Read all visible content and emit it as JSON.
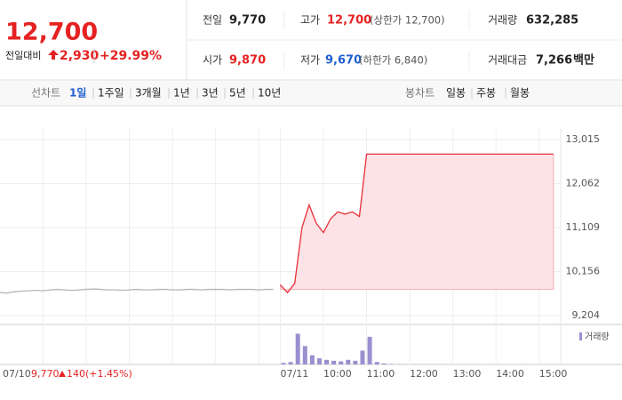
{
  "quote": {
    "price": "12,700",
    "change_label": "전일대비",
    "change": "2,930",
    "rate": "+29.99%"
  },
  "stats": [
    {
      "label": "전일",
      "value": "9,770"
    },
    {
      "label": "고가",
      "value": "12,700",
      "note": "(상한가 12,700)"
    },
    {
      "label": "거래량",
      "value": "632,285"
    },
    {
      "label": "시가",
      "value": "9,870"
    },
    {
      "label": "저가",
      "value": "9,670",
      "note": "(하한가 6,840)"
    },
    {
      "label": "거래대금",
      "value": "7,266",
      "unit": "백만"
    }
  ],
  "line_tabs": {
    "label": "선차트",
    "items": [
      "1일",
      "1주일",
      "3개월",
      "1년",
      "3년",
      "5년",
      "10년"
    ]
  },
  "candle_tabs": {
    "label": "봉차트",
    "items": [
      "일봉",
      "주봉",
      "월봉"
    ]
  },
  "prev_day": {
    "price": "9,770",
    "change": "140",
    "rate": "(+1.45%)"
  },
  "chart_data": {
    "type": "line",
    "categories": [
      "07/10",
      null,
      null,
      null,
      null,
      null,
      null,
      null,
      null,
      null,
      null,
      null,
      null,
      null,
      null,
      null,
      null,
      null,
      null,
      null,
      null,
      null,
      null,
      null,
      null,
      null,
      null,
      null,
      null,
      null,
      null,
      null,
      null,
      null,
      null,
      null,
      null,
      null,
      null,
      "07/11",
      null,
      null,
      null,
      null,
      null,
      "10:00",
      null,
      null,
      null,
      null,
      null,
      "11:00",
      null,
      null,
      null,
      null,
      null,
      "12:00",
      null,
      null,
      null,
      null,
      null,
      "13:00",
      null,
      null,
      null,
      null,
      null,
      "14:00",
      null,
      null,
      null,
      null,
      null,
      "15:00",
      null,
      null
    ],
    "series": [
      {
        "color": "#b5b5b5",
        "values": [
          9700,
          9690,
          9720,
          9730,
          9740,
          9750,
          9740,
          9760,
          9770,
          9760,
          9750,
          9760,
          9770,
          9780,
          9770,
          9760,
          9760,
          9750,
          9760,
          9770,
          9760,
          9760,
          9770,
          9770,
          9760,
          9760,
          9770,
          9770,
          9760,
          9770,
          9770,
          9770,
          9760,
          9770,
          9770,
          9770,
          9760,
          9770,
          9770,
          null,
          null,
          null,
          null,
          null,
          null,
          null,
          null,
          null,
          null,
          null,
          null,
          null,
          null,
          null,
          null,
          null,
          null,
          null,
          null,
          null,
          null,
          null,
          null,
          null,
          null,
          null,
          null,
          null,
          null,
          null,
          null,
          null,
          null,
          null,
          null,
          null,
          null,
          null
        ]
      },
      {
        "color": "#e8323c",
        "values": [
          null,
          null,
          null,
          null,
          null,
          null,
          null,
          null,
          null,
          null,
          null,
          null,
          null,
          null,
          null,
          null,
          null,
          null,
          null,
          null,
          null,
          null,
          null,
          null,
          null,
          null,
          null,
          null,
          null,
          null,
          null,
          null,
          null,
          null,
          null,
          null,
          null,
          null,
          null,
          9870,
          9700,
          9900,
          11100,
          11600,
          11200,
          11000,
          11300,
          11450,
          11400,
          11450,
          11350,
          12700,
          12700,
          12700,
          12700,
          12700,
          12700,
          12700,
          12700,
          12700,
          12700,
          12700,
          12700,
          12700,
          12700,
          12700,
          12700,
          12700,
          12700,
          12700,
          12700,
          12700,
          12700,
          12700,
          12700,
          12700,
          12700,
          12700
        ]
      },
      {
        "name": "거래량",
        "type": "bar",
        "axis": "y2",
        "color": "#9b8fd0",
        "values": [
          null,
          null,
          null,
          null,
          null,
          null,
          null,
          null,
          null,
          null,
          null,
          null,
          null,
          null,
          null,
          null,
          null,
          null,
          null,
          null,
          null,
          null,
          null,
          null,
          null,
          null,
          null,
          null,
          null,
          null,
          null,
          null,
          null,
          null,
          null,
          null,
          null,
          null,
          null,
          5000,
          8000,
          100000,
          60000,
          30000,
          20000,
          15000,
          12000,
          10000,
          15000,
          12000,
          45000,
          90000,
          8000,
          3000,
          1500,
          1000,
          800,
          600,
          500,
          400,
          300,
          300,
          200,
          200,
          200,
          100,
          100,
          100,
          100,
          100,
          100,
          100,
          100,
          100,
          100,
          100,
          100,
          100
        ]
      }
    ],
    "ylim": [
      9011,
      13246
    ],
    "yticks": [
      {
        "value": 9204,
        "label": "9,204"
      },
      {
        "value": 10156,
        "label": "10,156"
      },
      {
        "value": 11109,
        "label": "11,109"
      },
      {
        "value": 12062,
        "label": "12,062"
      },
      {
        "value": 13015,
        "label": "13,015"
      }
    ],
    "y2lim": [
      0,
      110000
    ],
    "grid": true
  }
}
